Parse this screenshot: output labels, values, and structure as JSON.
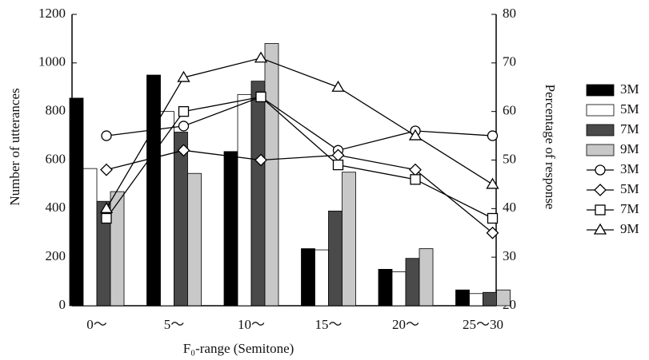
{
  "chart_data": {
    "type": "bar-line",
    "xlabel": "F₀-range (Semitone)",
    "ylabel": "Number of utterances",
    "y2label": "Percentage of response",
    "categories": [
      "0～",
      "5～",
      "10～",
      "15～",
      "20～",
      "25～30"
    ],
    "ylim": [
      0,
      1200
    ],
    "yticks": [
      0,
      200,
      400,
      600,
      800,
      1000,
      1200
    ],
    "y2lim": [
      20,
      80
    ],
    "y2ticks": [
      20,
      30,
      40,
      50,
      60,
      70,
      80
    ],
    "series": [
      {
        "name": "3M",
        "kind": "bar",
        "color": "#000000",
        "values": [
          855,
          950,
          635,
          235,
          150,
          65
        ]
      },
      {
        "name": "5M",
        "kind": "bar",
        "color": "#ffffff",
        "values": [
          565,
          800,
          870,
          230,
          140,
          50
        ]
      },
      {
        "name": "7M",
        "kind": "bar",
        "color": "#4a4a4a",
        "values": [
          430,
          715,
          925,
          390,
          195,
          55
        ]
      },
      {
        "name": "9M",
        "kind": "bar",
        "color": "#c8c8c8",
        "values": [
          470,
          545,
          1080,
          550,
          235,
          65
        ]
      },
      {
        "name": "3M",
        "kind": "line",
        "axis": "y2",
        "marker": "circle",
        "color": "#000000",
        "values": [
          55,
          57,
          63,
          52,
          56,
          55
        ]
      },
      {
        "name": "5M",
        "kind": "line",
        "axis": "y2",
        "marker": "diamond",
        "color": "#000000",
        "values": [
          48,
          52,
          50,
          51,
          48,
          35
        ]
      },
      {
        "name": "7M",
        "kind": "line",
        "axis": "y2",
        "marker": "square",
        "color": "#000000",
        "values": [
          38,
          60,
          63,
          49,
          46,
          38
        ]
      },
      {
        "name": "9M",
        "kind": "line",
        "axis": "y2",
        "marker": "triangle",
        "color": "#000000",
        "values": [
          40,
          67,
          71,
          65,
          55,
          45
        ]
      }
    ]
  }
}
